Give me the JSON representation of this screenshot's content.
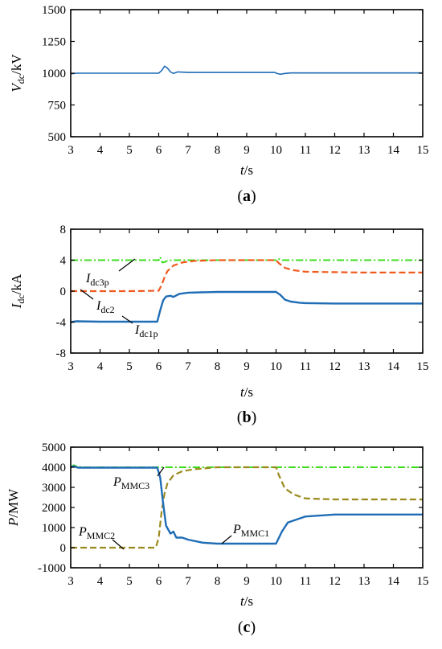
{
  "chart_data": [
    {
      "type": "line",
      "panel_label": "a",
      "xlabel": {
        "italic": "t",
        "rest": "/s"
      },
      "ylabel": {
        "italic": "V",
        "sub": "dc",
        "rest": "/kV"
      },
      "xlim": [
        3,
        15
      ],
      "ylim": [
        500,
        1500
      ],
      "xticks": [
        3,
        4,
        5,
        6,
        7,
        8,
        9,
        10,
        11,
        12,
        13,
        14,
        15
      ],
      "yticks": [
        500,
        750,
        1000,
        1250,
        1500
      ],
      "grid": false,
      "series": [
        {
          "color": "#1f6db5",
          "dash": "",
          "width": 1.6,
          "x": [
            3,
            3.2,
            4,
            5,
            6,
            6.1,
            6.2,
            6.3,
            6.4,
            6.5,
            6.65,
            6.8,
            7,
            8,
            9,
            9.95,
            10.05,
            10.15,
            10.3,
            10.5,
            11,
            12,
            13,
            14,
            15
          ],
          "y": [
            995,
            1000,
            1000,
            1000,
            1000,
            1020,
            1055,
            1040,
            1010,
            998,
            1010,
            1008,
            1006,
            1006,
            1006,
            1006,
            997,
            992,
            998,
            1002,
            1002,
            1002,
            1002,
            1002,
            1002
          ]
        }
      ]
    },
    {
      "type": "line",
      "panel_label": "b",
      "xlabel": {
        "italic": "t",
        "rest": "/s"
      },
      "ylabel": {
        "italic": "I",
        "sub": "dc",
        "rest": "/kA"
      },
      "xlim": [
        3,
        15
      ],
      "ylim": [
        -8,
        8
      ],
      "xticks": [
        3,
        4,
        5,
        6,
        7,
        8,
        9,
        10,
        11,
        12,
        13,
        14,
        15
      ],
      "yticks": [
        -8,
        -4,
        0,
        4,
        8
      ],
      "grid": false,
      "annotations": [
        {
          "italic": "I",
          "sub": "dc3p"
        },
        {
          "italic": "I",
          "sub": "dc2"
        },
        {
          "italic": "I",
          "sub": "dc1p"
        }
      ],
      "series": [
        {
          "color": "#3ddc1e",
          "dash": "9,3,2,3",
          "width": 2,
          "x": [
            3,
            4,
            5,
            6,
            6.05,
            6.12,
            6.2,
            6.3,
            6.5,
            7,
            10,
            10.05,
            10.1,
            10.2,
            11,
            15
          ],
          "y": [
            4,
            4,
            4,
            4,
            4.4,
            3.7,
            3.75,
            3.95,
            4,
            4,
            4,
            4.2,
            4.15,
            4,
            4,
            4
          ]
        },
        {
          "color": "#f05a1e",
          "dash": "8,4",
          "width": 2.2,
          "x": [
            3,
            4,
            5,
            6,
            6.1,
            6.2,
            6.3,
            6.5,
            6.8,
            7.2,
            8,
            9,
            10,
            10.1,
            10.3,
            10.6,
            11,
            12,
            13,
            14,
            15
          ],
          "y": [
            0,
            0,
            0,
            0.05,
            0.8,
            1.8,
            2.6,
            3.3,
            3.7,
            3.9,
            4,
            4,
            4,
            3.6,
            3,
            2.7,
            2.5,
            2.45,
            2.4,
            2.4,
            2.4
          ]
        },
        {
          "color": "#1f6db5",
          "dash": "",
          "width": 2.4,
          "x": [
            3,
            3.2,
            4,
            5,
            5.95,
            6.05,
            6.15,
            6.25,
            6.4,
            6.5,
            6.7,
            7,
            8,
            9,
            10,
            10.15,
            10.3,
            10.5,
            10.8,
            11,
            12,
            13,
            14,
            15
          ],
          "y": [
            -4,
            -3.9,
            -3.95,
            -3.95,
            -3.95,
            -2.5,
            -1.2,
            -0.7,
            -0.6,
            -0.75,
            -0.35,
            -0.2,
            -0.1,
            -0.1,
            -0.1,
            -0.5,
            -1.1,
            -1.35,
            -1.5,
            -1.55,
            -1.6,
            -1.6,
            -1.6,
            -1.6
          ]
        }
      ]
    },
    {
      "type": "line",
      "panel_label": "c",
      "xlabel": {
        "italic": "t",
        "rest": "/s"
      },
      "ylabel": {
        "italic": "P",
        "sub": "",
        "rest": "/MW"
      },
      "xlim": [
        3,
        15
      ],
      "ylim": [
        -1000,
        5000
      ],
      "xticks": [
        3,
        4,
        5,
        6,
        7,
        8,
        9,
        10,
        11,
        12,
        13,
        14,
        15
      ],
      "yticks": [
        -1000,
        0,
        1000,
        2000,
        3000,
        4000,
        5000
      ],
      "grid": false,
      "annotations": [
        {
          "italic": "P",
          "sub": "MMC3"
        },
        {
          "italic": "P",
          "sub": "MMC2"
        },
        {
          "italic": "P",
          "sub": "MMC1"
        }
      ],
      "series": [
        {
          "color": "#3ddc1e",
          "dash": "9,3,2,3",
          "width": 2,
          "x": [
            3,
            3.1,
            3.25,
            3.5,
            4,
            5,
            6,
            7,
            8,
            9,
            10,
            11,
            12,
            13,
            14,
            15
          ],
          "y": [
            4000,
            4100,
            4020,
            4000,
            4000,
            4000,
            4000,
            4000,
            4000,
            4000,
            4000,
            4000,
            4000,
            4000,
            4000,
            4000
          ]
        },
        {
          "color": "#9a8a1e",
          "dash": "8,4",
          "width": 2.2,
          "x": [
            3,
            4,
            5,
            5.9,
            6,
            6.1,
            6.2,
            6.3,
            6.5,
            6.8,
            7.2,
            8,
            9,
            10,
            10.1,
            10.3,
            10.6,
            11,
            12,
            13,
            14,
            15
          ],
          "y": [
            0,
            0,
            0,
            0,
            500,
            1800,
            2700,
            3200,
            3600,
            3800,
            3900,
            4000,
            4000,
            4000,
            3600,
            2950,
            2650,
            2450,
            2400,
            2400,
            2400,
            2400
          ]
        },
        {
          "color": "#1f6db5",
          "dash": "",
          "width": 2.4,
          "x": [
            3,
            3.1,
            3.25,
            3.5,
            4,
            5,
            5.95,
            6.05,
            6.15,
            6.25,
            6.4,
            6.5,
            6.6,
            6.8,
            7,
            7.5,
            8,
            9,
            10,
            10.2,
            10.4,
            10.6,
            11,
            12,
            13,
            14,
            15
          ],
          "y": [
            4000,
            4050,
            3980,
            3980,
            3980,
            3980,
            3980,
            3500,
            2200,
            1100,
            700,
            800,
            500,
            500,
            400,
            250,
            200,
            200,
            200,
            800,
            1250,
            1350,
            1550,
            1650,
            1650,
            1650,
            1650
          ]
        }
      ]
    }
  ]
}
